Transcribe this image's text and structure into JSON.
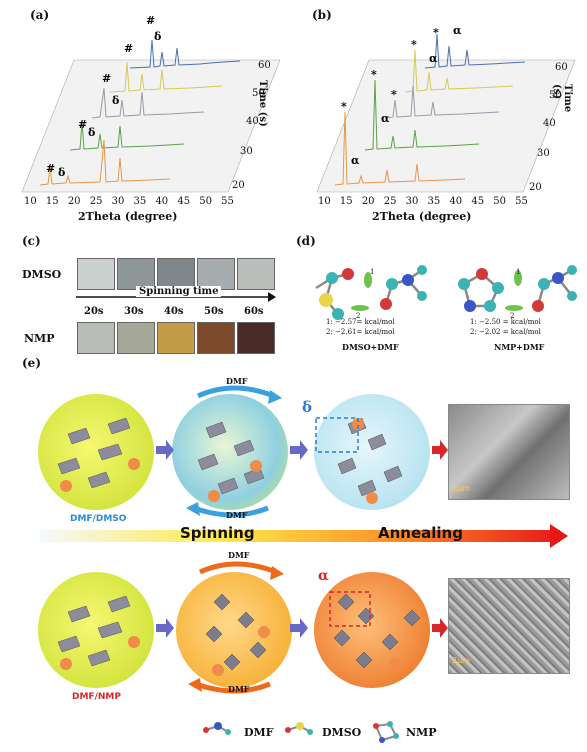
{
  "panels": {
    "a": {
      "label": "(a)",
      "times": [
        "60",
        "50",
        "40",
        "30",
        "20"
      ],
      "x_ticks": [
        "10",
        "15",
        "20",
        "25",
        "30",
        "35",
        "40",
        "45",
        "50",
        "55"
      ],
      "xlabel": "2Theta (degree)",
      "ylabel": "Time (s)",
      "markers": [
        "#",
        "δ"
      ]
    },
    "b": {
      "label": "(b)",
      "times": [
        "60",
        "50",
        "40",
        "30",
        "20"
      ],
      "x_ticks": [
        "10",
        "15",
        "20",
        "25",
        "30",
        "35",
        "40",
        "45",
        "50",
        "55"
      ],
      "xlabel": "2Theta (degree)",
      "ylabel": "Time (s)",
      "markers": [
        "*",
        "α"
      ]
    },
    "c": {
      "label": "(c)",
      "row1": "DMSO",
      "row2": "NMP",
      "arrow_label": "Spinning time",
      "times": [
        "20s",
        "30s",
        "40s",
        "50s",
        "60s"
      ],
      "dmso_colors": [
        "#c9d0cd",
        "#8f9698",
        "#7f878b",
        "#a7acae",
        "#b9beba"
      ],
      "nmp_colors": [
        "#b8bdb8",
        "#a6a99a",
        "#c49b47",
        "#7d4a2c",
        "#4b2b27"
      ]
    },
    "d": {
      "label": "(d)",
      "left_caption": "DMSO+DMF",
      "right_caption": "NMP+DMF",
      "left_e1": "1: −2.57= kcal/mol",
      "left_e2": "2: −2.61= kcal/mol",
      "right_e1": "1: −2.50 = kcal/mol",
      "right_e2": "2: −2.02 = kcal/mol",
      "site1": "1",
      "site2": "2"
    },
    "e": {
      "label": "(e)",
      "dmf_top": "DMF",
      "dmf_bottom": "DMF",
      "dmf2_top": "DMF",
      "dmf2_bottom": "DMF",
      "system_top": "DMF/DMSO",
      "system_bottom": "DMF/NMP",
      "spinning": "Spinning",
      "annealing": "Annealing",
      "delta": "δ",
      "alpha": "α",
      "scale_top": "2μm",
      "scale_bottom": "2μm",
      "legend": [
        "DMF",
        "DMSO",
        "NMP"
      ]
    }
  }
}
